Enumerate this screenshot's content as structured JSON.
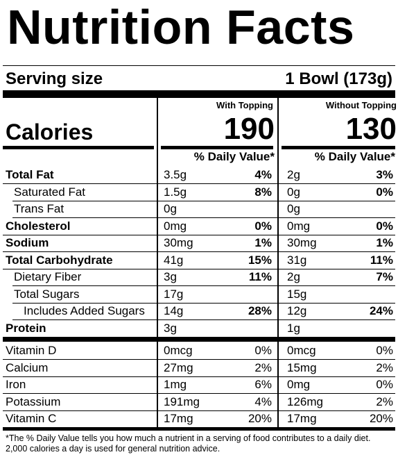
{
  "title": "Nutrition Facts",
  "serving": {
    "label": "Serving size",
    "value": "1 Bowl (173g)"
  },
  "columns": [
    {
      "header": "With Topping",
      "calories": "190",
      "dv_header": "% Daily Value*"
    },
    {
      "header": "Without Topping",
      "calories": "130",
      "dv_header": "% Daily Value*"
    }
  ],
  "calories_label": "Calories",
  "nutrients": [
    {
      "label": "Total Fat",
      "bold": true,
      "indent": 0,
      "with": {
        "amt": "3.5g",
        "dv": "4%"
      },
      "without": {
        "amt": "2g",
        "dv": "3%"
      }
    },
    {
      "label": "Saturated Fat",
      "bold": false,
      "indent": 1,
      "with": {
        "amt": "1.5g",
        "dv": "8%"
      },
      "without": {
        "amt": "0g",
        "dv": "0%"
      }
    },
    {
      "label": "Trans Fat",
      "bold": false,
      "indent": 1,
      "with": {
        "amt": "0g",
        "dv": ""
      },
      "without": {
        "amt": "0g",
        "dv": ""
      }
    },
    {
      "label": "Cholesterol",
      "bold": true,
      "indent": 0,
      "with": {
        "amt": "0mg",
        "dv": "0%"
      },
      "without": {
        "amt": "0mg",
        "dv": "0%"
      }
    },
    {
      "label": "Sodium",
      "bold": true,
      "indent": 0,
      "with": {
        "amt": "30mg",
        "dv": "1%"
      },
      "without": {
        "amt": "30mg",
        "dv": "1%"
      }
    },
    {
      "label": "Total Carbohydrate",
      "bold": true,
      "indent": 0,
      "with": {
        "amt": "41g",
        "dv": "15%"
      },
      "without": {
        "amt": "31g",
        "dv": "11%"
      }
    },
    {
      "label": "Dietary Fiber",
      "bold": false,
      "indent": 1,
      "with": {
        "amt": "3g",
        "dv": "11%"
      },
      "without": {
        "amt": "2g",
        "dv": "7%"
      }
    },
    {
      "label": "Total Sugars",
      "bold": false,
      "indent": 1,
      "with": {
        "amt": "17g",
        "dv": ""
      },
      "without": {
        "amt": "15g",
        "dv": ""
      }
    },
    {
      "label": "Includes Added Sugars",
      "bold": false,
      "indent": 2,
      "with": {
        "amt": "14g",
        "dv": "28%"
      },
      "without": {
        "amt": "12g",
        "dv": "24%"
      }
    },
    {
      "label": "Protein",
      "bold": true,
      "indent": 0,
      "with": {
        "amt": "3g",
        "dv": ""
      },
      "without": {
        "amt": "1g",
        "dv": ""
      }
    }
  ],
  "vitamins": [
    {
      "label": "Vitamin D",
      "with": {
        "amt": "0mcg",
        "dv": "0%"
      },
      "without": {
        "amt": "0mcg",
        "dv": "0%"
      }
    },
    {
      "label": "Calcium",
      "with": {
        "amt": "27mg",
        "dv": "2%"
      },
      "without": {
        "amt": "15mg",
        "dv": "2%"
      }
    },
    {
      "label": "Iron",
      "with": {
        "amt": "1mg",
        "dv": "6%"
      },
      "without": {
        "amt": "0mg",
        "dv": "0%"
      }
    },
    {
      "label": "Potassium",
      "with": {
        "amt": "191mg",
        "dv": "4%"
      },
      "without": {
        "amt": "126mg",
        "dv": "2%"
      }
    },
    {
      "label": "Vitamin C",
      "with": {
        "amt": "17mg",
        "dv": "20%"
      },
      "without": {
        "amt": "17mg",
        "dv": "20%"
      }
    }
  ],
  "footnote": {
    "line1": "*The % Daily Value tells you how much a nutrient in a serving of food contributes to a daily diet.",
    "line2": "2,000 calories a day is used for general nutrition advice."
  }
}
